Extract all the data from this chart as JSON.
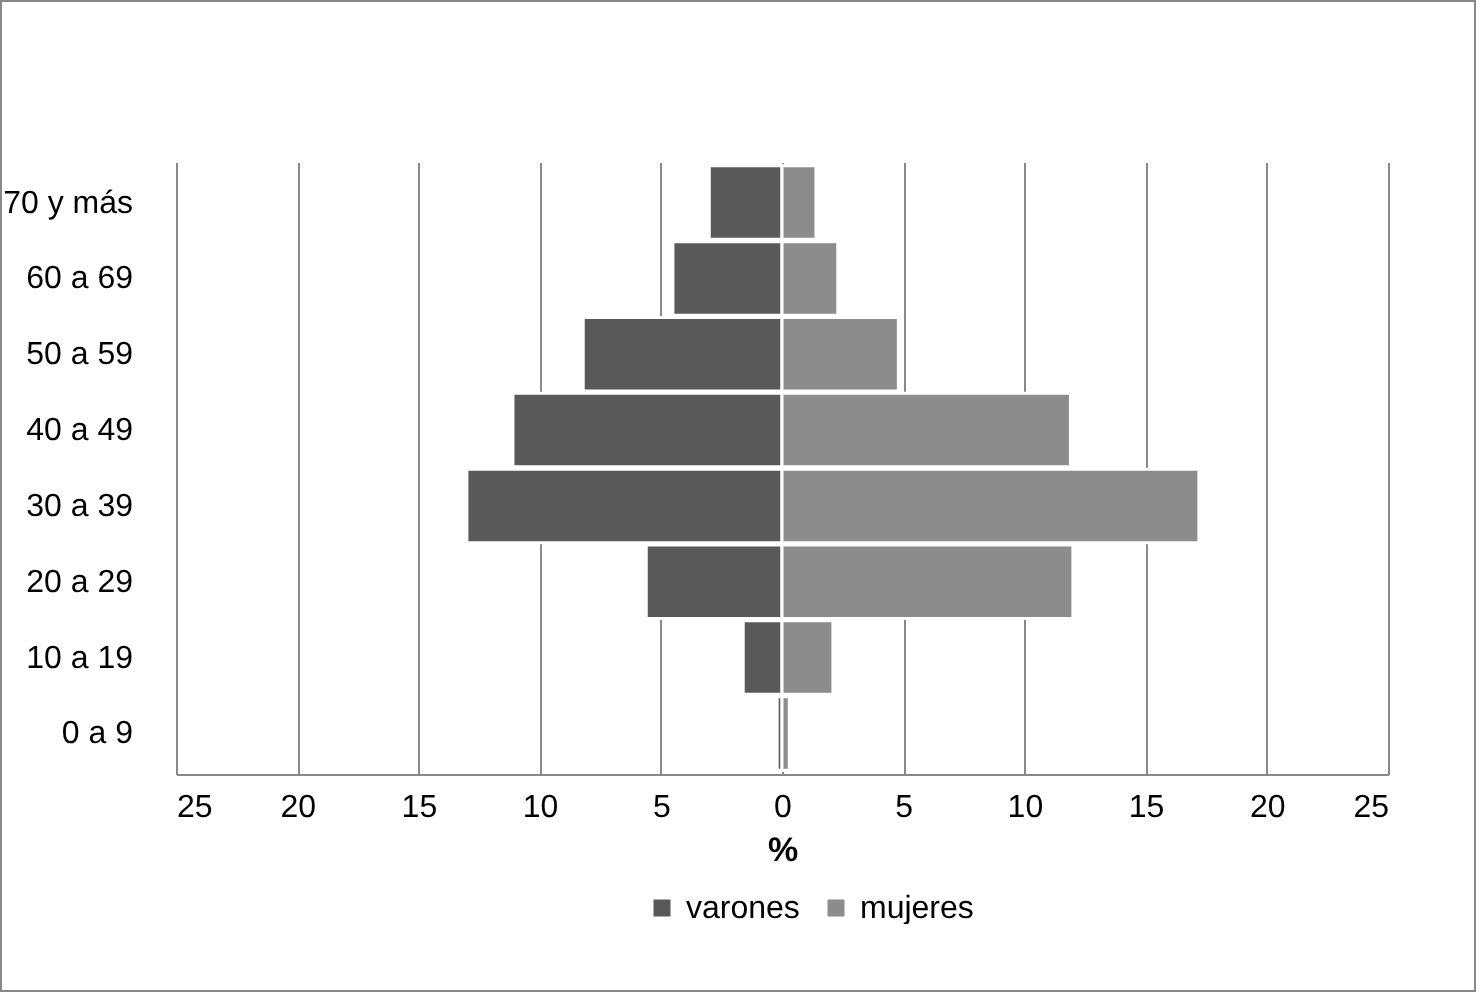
{
  "chart_data": {
    "type": "bar",
    "orientation": "horizontal",
    "xlabel": "%",
    "categories": [
      "70 y más",
      "60 a 69",
      "50 a 59",
      "40 a 49",
      "30 a 39",
      "20 a 29",
      "10 a 19",
      "0 a 9"
    ],
    "series": [
      {
        "name": "varones",
        "color": "#595959",
        "values": [
          -3.0,
          -4.5,
          -8.2,
          -11.1,
          -13.0,
          -5.6,
          -1.6,
          -0.2
        ]
      },
      {
        "name": "mujeres",
        "color": "#8c8c8c",
        "values": [
          1.4,
          2.3,
          4.8,
          11.9,
          17.2,
          12.0,
          2.1,
          0.3
        ]
      }
    ],
    "xlim": [
      -25,
      25
    ],
    "xticks": [
      {
        "value": -25,
        "label": "25"
      },
      {
        "value": -20,
        "label": "20"
      },
      {
        "value": -15,
        "label": "15"
      },
      {
        "value": -10,
        "label": "10"
      },
      {
        "value": -5,
        "label": "5"
      },
      0,
      5,
      10,
      15,
      20,
      25
    ],
    "stacked": true,
    "grid": "x",
    "legend": "bottom"
  }
}
